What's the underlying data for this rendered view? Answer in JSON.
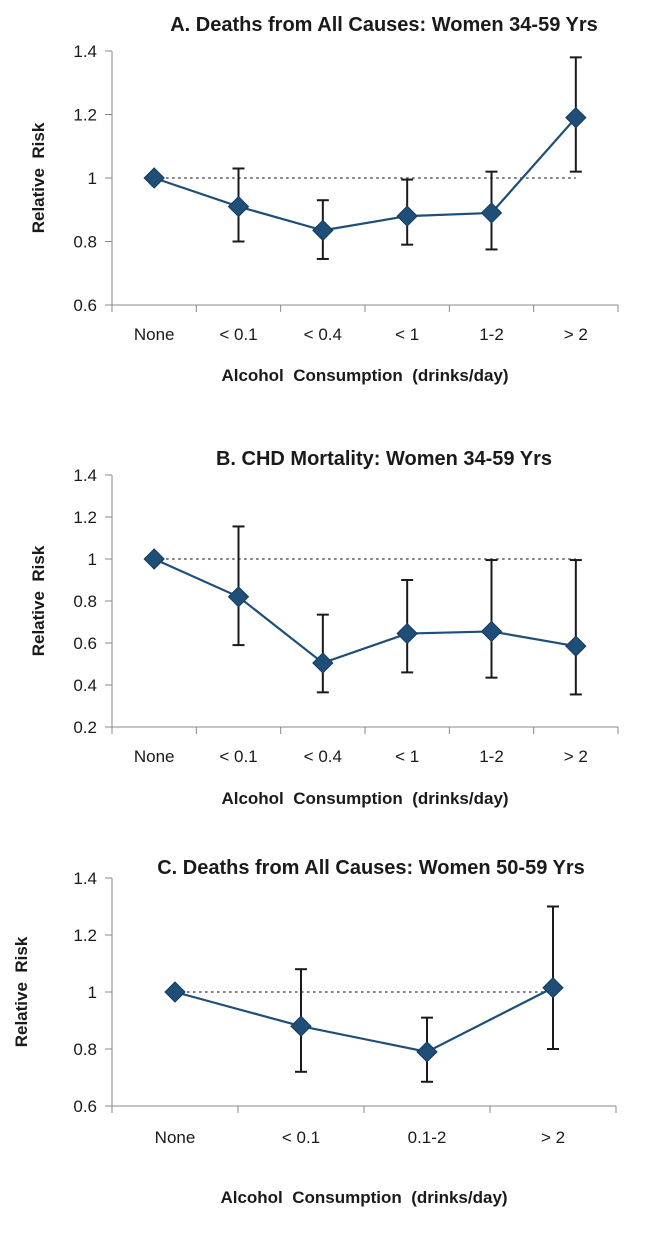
{
  "colors": {
    "series": "#1f4e79",
    "marker": "#1f4e79",
    "error_bar": "#1a1a1a",
    "axis": "#888888",
    "reference_line": "#333333",
    "text": "#1a1a1a"
  },
  "chart_data": [
    {
      "id": "A",
      "type": "line",
      "title": "A. Deaths from All Causes: Women 34-59 Yrs",
      "xlabel": "Alcohol  Consumption  (drinks/day)",
      "ylabel": "Relative  Risk",
      "categories": [
        "None",
        "< 0.1",
        "< 0.4",
        "< 1",
        "1-2",
        "> 2"
      ],
      "values": [
        1.0,
        0.91,
        0.835,
        0.88,
        0.89,
        1.19
      ],
      "ci_lower": [
        1.0,
        0.8,
        0.745,
        0.79,
        0.775,
        1.02
      ],
      "ci_upper": [
        1.0,
        1.03,
        0.93,
        0.995,
        1.02,
        1.38
      ],
      "ylim": [
        0.6,
        1.4
      ],
      "yticks": [
        0.6,
        0.8,
        1,
        1.2,
        1.4
      ],
      "ytick_labels": [
        "0.6",
        "0.8",
        "1",
        "1.2",
        "1.4"
      ],
      "reference_line": 1
    },
    {
      "id": "B",
      "type": "line",
      "title": "B. CHD Mortality: Women 34-59 Yrs",
      "xlabel": "Alcohol  Consumption  (drinks/day)",
      "ylabel": "Relative  Risk",
      "categories": [
        "None",
        "< 0.1",
        "< 0.4",
        "< 1",
        "1-2",
        "> 2"
      ],
      "values": [
        1.0,
        0.82,
        0.505,
        0.645,
        0.655,
        0.585
      ],
      "ci_lower": [
        1.0,
        0.59,
        0.365,
        0.46,
        0.435,
        0.355
      ],
      "ci_upper": [
        1.0,
        1.155,
        0.735,
        0.9,
        0.995,
        0.995
      ],
      "ylim": [
        0.2,
        1.4
      ],
      "yticks": [
        0.2,
        0.4,
        0.6,
        0.8,
        1,
        1.2,
        1.4
      ],
      "ytick_labels": [
        "0.2",
        "0.4",
        "0.6",
        "0.8",
        "1",
        "1.2",
        "1.4"
      ],
      "reference_line": 1
    },
    {
      "id": "C",
      "type": "line",
      "title": "C. Deaths from All Causes: Women 50-59 Yrs",
      "xlabel": "Alcohol  Consumption  (drinks/day)",
      "ylabel": "Relative  Risk",
      "categories": [
        "None",
        "< 0.1",
        "0.1-2",
        "> 2"
      ],
      "values": [
        1.0,
        0.88,
        0.79,
        1.015
      ],
      "ci_lower": [
        1.0,
        0.72,
        0.685,
        0.8
      ],
      "ci_upper": [
        1.0,
        1.08,
        0.91,
        1.3
      ],
      "ylim": [
        0.6,
        1.4
      ],
      "yticks": [
        0.6,
        0.8,
        1,
        1.2,
        1.4
      ],
      "ytick_labels": [
        "0.6",
        "0.8",
        "1",
        "1.2",
        "1.4"
      ],
      "reference_line": 1
    }
  ]
}
